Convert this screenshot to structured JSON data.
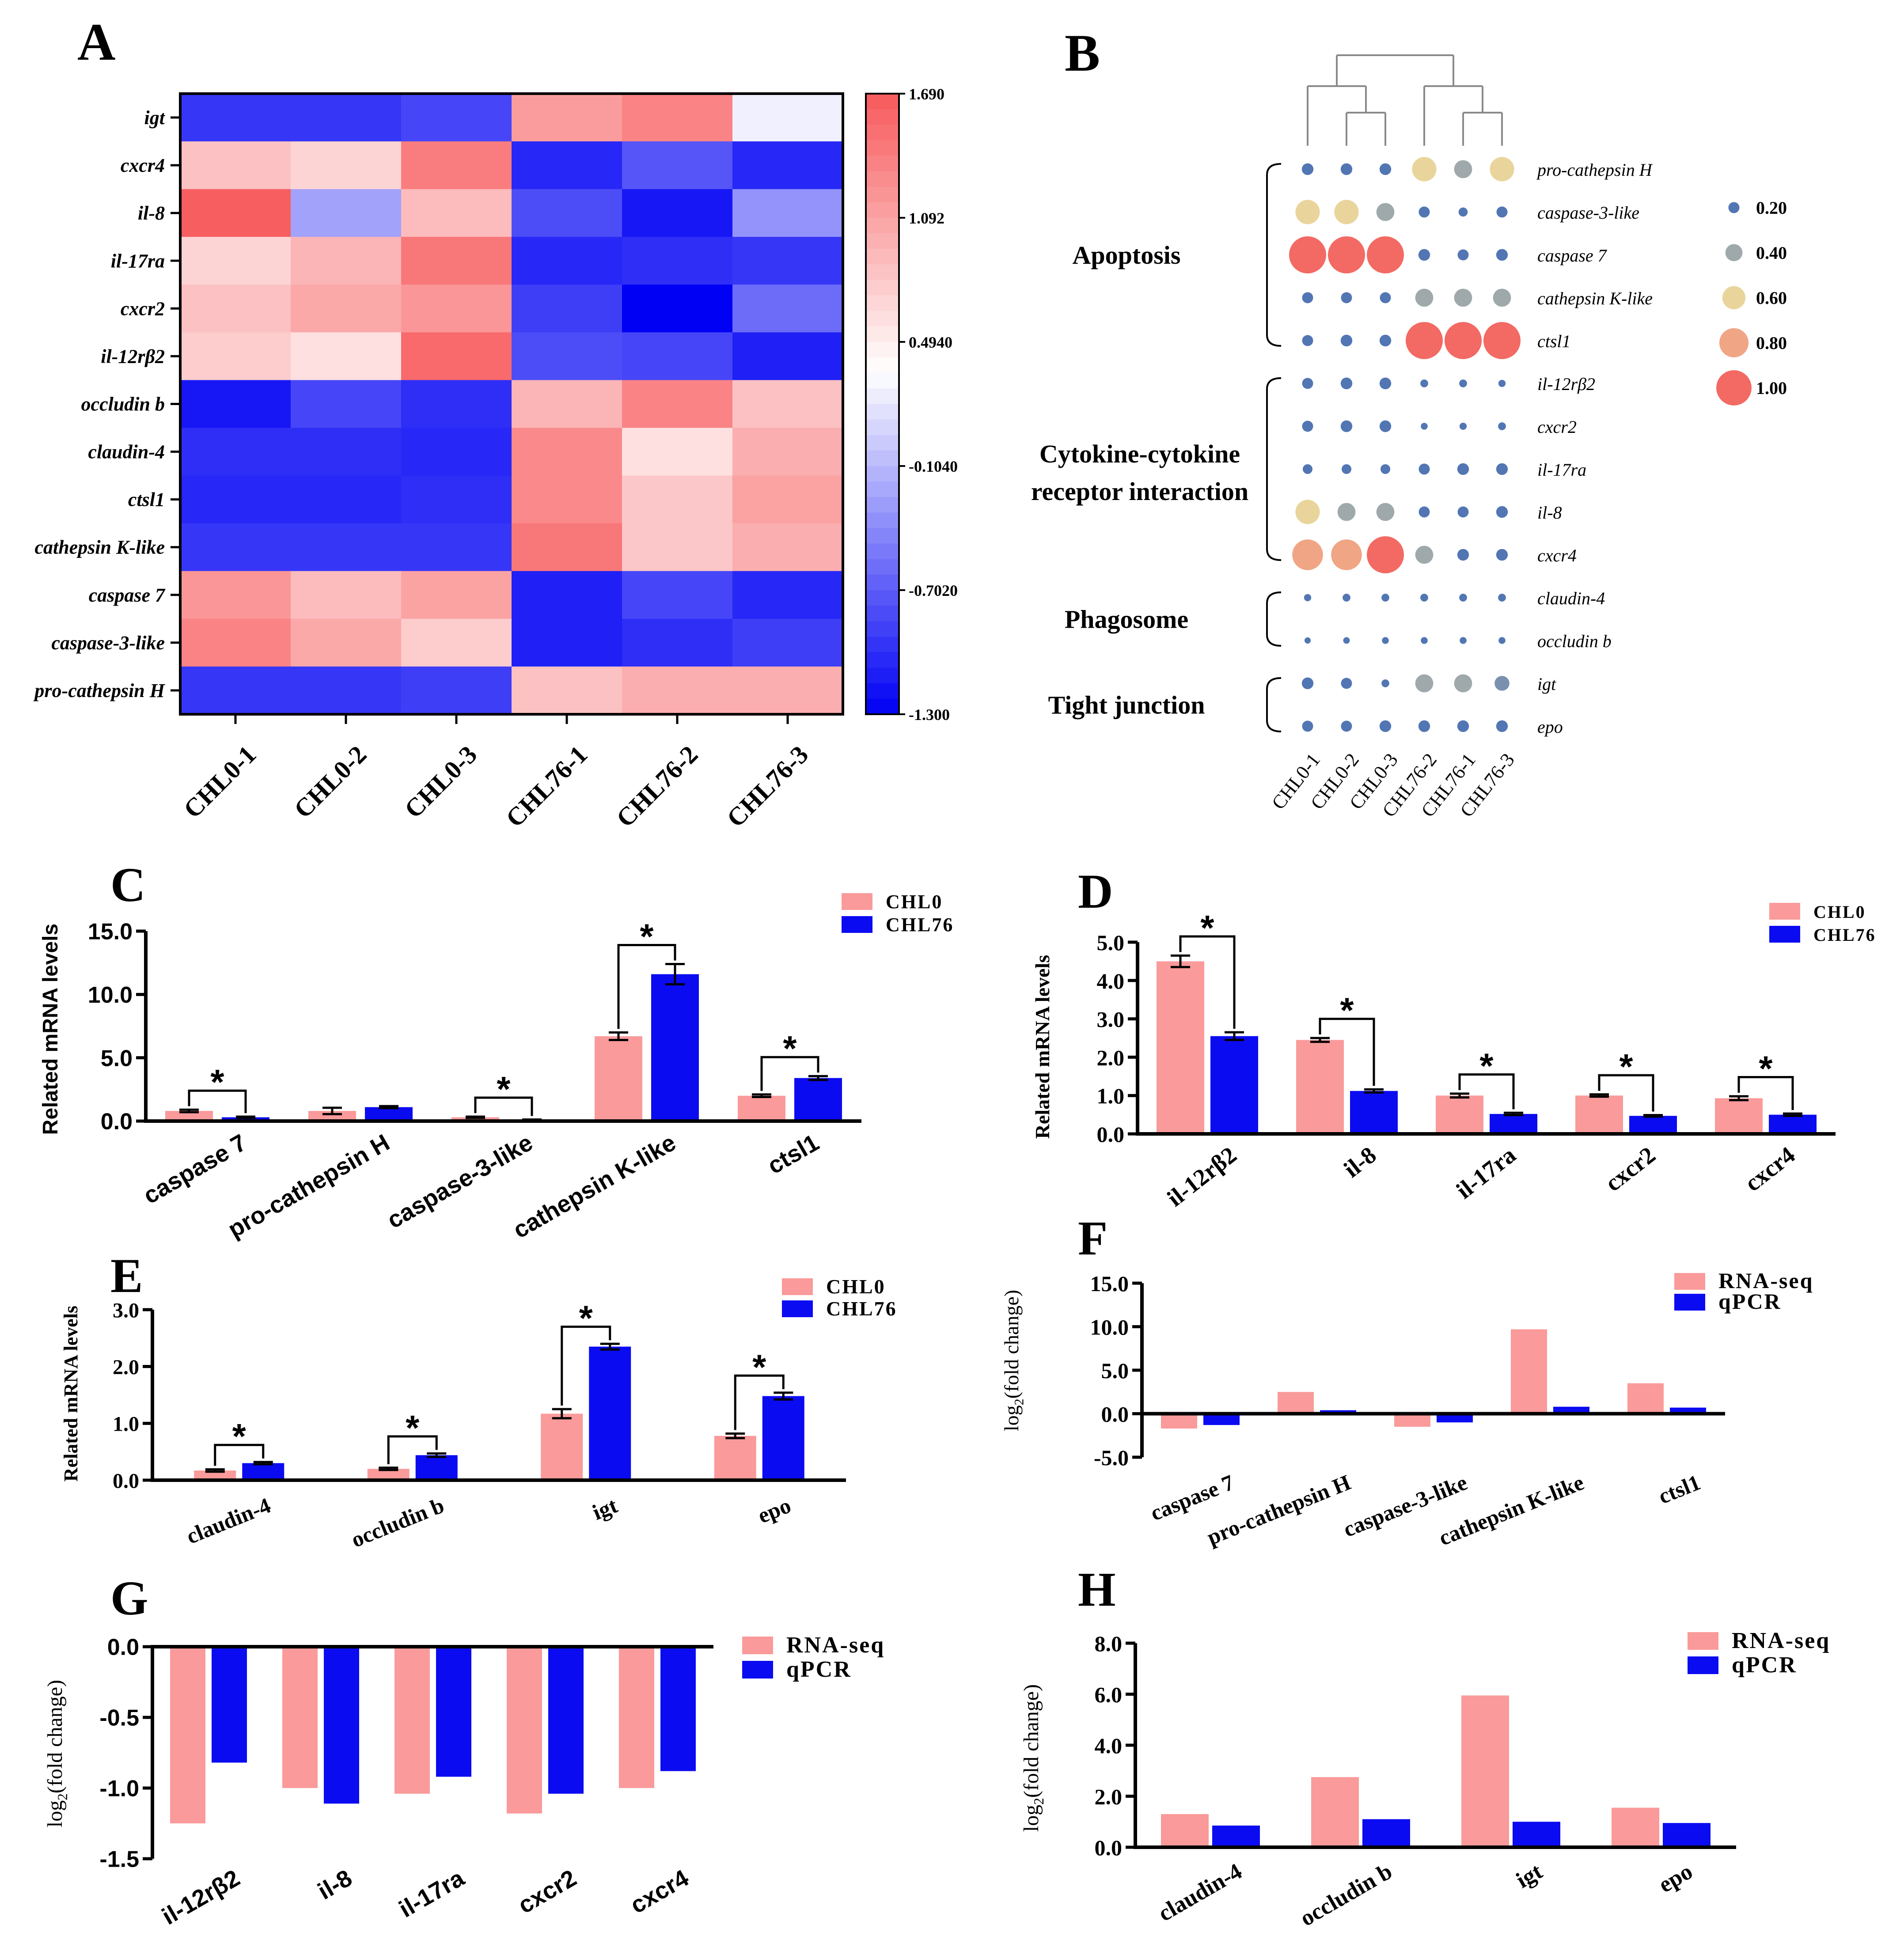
{
  "colors": {
    "chl0": "#fa9a9a",
    "chl76": "#0b0bf2",
    "rnaseq": "#fa9a9a",
    "qpcr": "#0b0bf2",
    "heat_high": "#f7595b",
    "heat_mid": "#ffffff",
    "heat_low": "#0000f5",
    "dot_scale": [
      "#5276b3",
      "#9fa9ab",
      "#e9d59c",
      "#f0a585",
      "#f26a63"
    ]
  },
  "chart_data": [
    {
      "panel": "A",
      "type": "heatmap",
      "rows": [
        "igt",
        "cxcr4",
        "il-8",
        "il-17ra",
        "cxcr2",
        "il-12rβ2",
        "occludin b",
        "claudin-4",
        "ctsl1",
        "cathepsin K-like",
        "caspase 7",
        "caspase-3-like",
        "pro-cathepsin H"
      ],
      "columns": [
        "CHL0-1",
        "CHL0-2",
        "CHL0-3",
        "CHL76-1",
        "CHL76-2",
        "CHL76-3"
      ],
      "values": [
        [
          -0.95,
          -0.95,
          -0.85,
          1.15,
          1.35,
          0.25
        ],
        [
          0.85,
          0.7,
          1.4,
          -1.05,
          -0.75,
          -1.05
        ],
        [
          1.65,
          -0.25,
          0.9,
          -0.8,
          -1.15,
          -0.35
        ],
        [
          0.7,
          0.95,
          1.45,
          -1.05,
          -1.0,
          -0.95
        ],
        [
          0.85,
          1.05,
          1.2,
          -0.9,
          -1.3,
          -0.6
        ],
        [
          0.75,
          0.6,
          1.55,
          -0.8,
          -0.85,
          -1.1
        ],
        [
          -1.15,
          -0.85,
          -1.0,
          0.95,
          1.35,
          0.85
        ],
        [
          -1.0,
          -1.0,
          -1.05,
          1.3,
          0.6,
          1.0
        ],
        [
          -1.05,
          -1.05,
          -1.0,
          1.3,
          0.8,
          1.1
        ],
        [
          -0.95,
          -0.95,
          -0.95,
          1.45,
          0.8,
          1.0
        ],
        [
          1.2,
          0.9,
          1.1,
          -1.1,
          -0.85,
          -1.05
        ],
        [
          1.35,
          1.05,
          0.75,
          -1.1,
          -1.0,
          -0.9
        ],
        [
          -0.95,
          -0.95,
          -0.9,
          0.85,
          1.0,
          1.0
        ]
      ],
      "colorbar_ticks": [
        "1.690",
        "1.092",
        "0.4940",
        "-0.1040",
        "-0.7020",
        "-1.300"
      ],
      "range": [
        -1.3,
        1.69
      ]
    },
    {
      "panel": "B",
      "type": "scatter",
      "columns": [
        "CHL0-1",
        "CHL0-2",
        "CHL0-3",
        "CHL76-2",
        "CHL76-1",
        "CHL76-3"
      ],
      "genes": [
        "pro-cathepsin H",
        "caspase-3-like",
        "caspase 7",
        "cathepsin K-like",
        "ctsl1",
        "il-12rβ2",
        "cxcr2",
        "il-17ra",
        "il-8",
        "cxcr4",
        "claudin-4",
        "occludin b",
        "igt",
        "epo"
      ],
      "groups": [
        {
          "label": "Apoptosis",
          "first_row": 0,
          "last_row": 4
        },
        {
          "label_lines": [
            "Cytokine-cytokine",
            "receptor interaction"
          ],
          "first_row": 5,
          "last_row": 9
        },
        {
          "label": "Phagosome",
          "first_row": 10,
          "last_row": 11
        },
        {
          "label": "Tight junction",
          "first_row": 12,
          "last_row": 13
        }
      ],
      "values": [
        [
          0.2,
          0.2,
          0.2,
          0.6,
          0.4,
          0.6
        ],
        [
          0.6,
          0.6,
          0.4,
          0.18,
          0.12,
          0.18
        ],
        [
          1.0,
          1.0,
          1.0,
          0.2,
          0.18,
          0.2
        ],
        [
          0.18,
          0.18,
          0.18,
          0.4,
          0.4,
          0.4
        ],
        [
          0.18,
          0.2,
          0.2,
          1.0,
          1.0,
          1.0
        ],
        [
          0.18,
          0.2,
          0.2,
          0.08,
          0.08,
          0.06
        ],
        [
          0.18,
          0.2,
          0.2,
          0.05,
          0.06,
          0.08
        ],
        [
          0.14,
          0.14,
          0.14,
          0.18,
          0.2,
          0.2
        ],
        [
          0.6,
          0.4,
          0.4,
          0.18,
          0.18,
          0.2
        ],
        [
          0.8,
          0.8,
          1.0,
          0.4,
          0.2,
          0.2
        ],
        [
          0.06,
          0.08,
          0.08,
          0.08,
          0.08,
          0.08
        ],
        [
          0.03,
          0.04,
          0.05,
          0.05,
          0.05,
          0.05
        ],
        [
          0.2,
          0.18,
          0.08,
          0.4,
          0.4,
          0.3
        ],
        [
          0.18,
          0.18,
          0.2,
          0.2,
          0.2,
          0.2
        ]
      ],
      "legend": [
        "0.20",
        "0.40",
        "0.60",
        "0.80",
        "1.00"
      ]
    },
    {
      "panel": "C",
      "type": "bar",
      "categories": [
        "caspase 7",
        "pro-cathepsin H",
        "caspase-3-like",
        "cathepsin K-like",
        "ctsl1"
      ],
      "series": [
        {
          "name": "CHL0",
          "values": [
            0.8,
            0.8,
            0.3,
            6.7,
            2.0
          ],
          "err": [
            0.1,
            0.25,
            0.05,
            0.3,
            0.1
          ]
        },
        {
          "name": "CHL76",
          "values": [
            0.3,
            1.1,
            0.1,
            11.6,
            3.4
          ],
          "err": [
            0.05,
            0.08,
            0.02,
            0.8,
            0.15
          ]
        }
      ],
      "ylabel": "Related mRNA levels",
      "yticks": [
        "0.0",
        "5.0",
        "10.0",
        "15.0"
      ],
      "ylim": [
        0,
        15
      ],
      "significance": [
        "*",
        "",
        "*",
        "*",
        "*"
      ]
    },
    {
      "panel": "D",
      "type": "bar",
      "categories": [
        "il-12rβ2",
        "il-8",
        "il-17ra",
        "cxcr2",
        "cxcr4"
      ],
      "series": [
        {
          "name": "CHL0",
          "values": [
            4.5,
            2.45,
            1.0,
            1.0,
            0.93
          ],
          "err": [
            0.15,
            0.05,
            0.05,
            0.03,
            0.05
          ]
        },
        {
          "name": "CHL76",
          "values": [
            2.55,
            1.12,
            0.52,
            0.47,
            0.5
          ],
          "err": [
            0.1,
            0.04,
            0.03,
            0.02,
            0.03
          ]
        }
      ],
      "ylabel": "Related mRNA levels",
      "yticks": [
        "0.0",
        "1.0",
        "2.0",
        "3.0",
        "4.0",
        "5.0"
      ],
      "ylim": [
        0,
        5
      ],
      "significance": [
        "*",
        "*",
        "*",
        "*",
        "*"
      ]
    },
    {
      "panel": "E",
      "type": "bar",
      "categories": [
        "claudin-4",
        "occludin b",
        "igt",
        "epo"
      ],
      "series": [
        {
          "name": "CHL0",
          "values": [
            0.17,
            0.2,
            1.17,
            0.78
          ],
          "err": [
            0.02,
            0.02,
            0.08,
            0.04
          ]
        },
        {
          "name": "CHL76",
          "values": [
            0.3,
            0.44,
            2.35,
            1.48
          ],
          "err": [
            0.02,
            0.03,
            0.05,
            0.06
          ]
        }
      ],
      "ylabel": "Related mRNA levels",
      "yticks": [
        "0.0",
        "1.0",
        "2.0",
        "3.0"
      ],
      "ylim": [
        0,
        3
      ],
      "significance": [
        "*",
        "*",
        "*",
        "*"
      ]
    },
    {
      "panel": "F",
      "type": "bar",
      "categories": [
        "caspase 7",
        "pro-cathepsin H",
        "caspase-3-like",
        "cathepsin K-like",
        "ctsl1"
      ],
      "series": [
        {
          "name": "RNA-seq",
          "values": [
            -1.7,
            2.5,
            -1.5,
            9.7,
            3.5
          ]
        },
        {
          "name": "qPCR",
          "values": [
            -1.3,
            0.4,
            -1.0,
            0.8,
            0.7
          ]
        }
      ],
      "ylabel": "log2(fold change)",
      "yticks": [
        "-5.0",
        "0.0",
        "5.0",
        "10.0",
        "15.0"
      ],
      "ylim": [
        -5,
        15
      ]
    },
    {
      "panel": "G",
      "type": "bar",
      "categories": [
        "il-12rβ2",
        "il-8",
        "il-17ra",
        "cxcr2",
        "cxcr4"
      ],
      "series": [
        {
          "name": "RNA-seq",
          "values": [
            -1.25,
            -1.0,
            -1.04,
            -1.18,
            -1.0
          ]
        },
        {
          "name": "qPCR",
          "values": [
            -0.82,
            -1.11,
            -0.92,
            -1.04,
            -0.88
          ]
        }
      ],
      "ylabel": "log2(fold change)",
      "yticks": [
        "0.0",
        "-0.5",
        "-1.0",
        "-1.5"
      ],
      "ylim": [
        -1.5,
        0
      ]
    },
    {
      "panel": "H",
      "type": "bar",
      "categories": [
        "claudin-4",
        "occludin b",
        "igt",
        "epo"
      ],
      "series": [
        {
          "name": "RNA-seq",
          "values": [
            1.3,
            2.75,
            5.95,
            1.55
          ]
        },
        {
          "name": "qPCR",
          "values": [
            0.85,
            1.1,
            1.0,
            0.95
          ]
        }
      ],
      "ylabel": "log2(fold change)",
      "yticks": [
        "0.0",
        "2.0",
        "4.0",
        "6.0",
        "8.0"
      ],
      "ylim": [
        0,
        8
      ]
    }
  ]
}
